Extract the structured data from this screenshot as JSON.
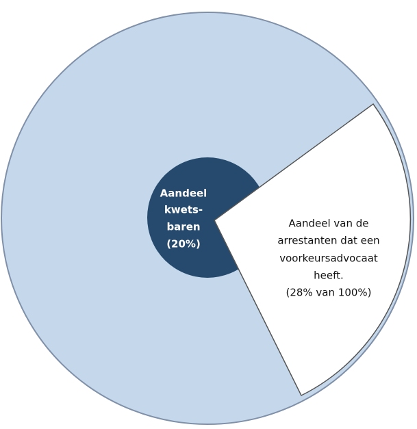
{
  "inner_circle": {
    "lines": [
      "Aandeel",
      "kwets-",
      "baren",
      "(20%)"
    ]
  },
  "wedge": {
    "lines": [
      "Aandeel van de",
      "arrestanten dat een",
      "voorkeursadvocaat",
      "heeft.",
      "(28% van 100%)"
    ]
  }
}
